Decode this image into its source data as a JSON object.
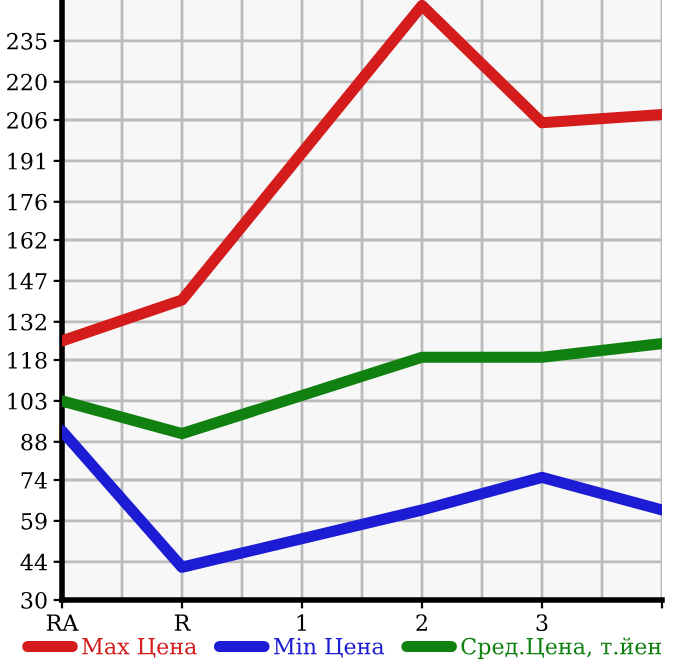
{
  "chart_data": {
    "type": "line",
    "categories": [
      "RA",
      "R",
      "1",
      "2",
      "3",
      null
    ],
    "ylim": [
      30,
      250
    ],
    "yticks": [
      30,
      44,
      59,
      74,
      88,
      103,
      118,
      132,
      147,
      162,
      176,
      191,
      206,
      220,
      235
    ],
    "grid": true,
    "legend": "bottom",
    "marker": "none",
    "line_style": "solid",
    "series": [
      {
        "name": "Max Цена",
        "color": "#d41c1c",
        "values": [
          125,
          140,
          null,
          248,
          205,
          208
        ]
      },
      {
        "name": "Min Цена",
        "color": "#1c1cd4",
        "values": [
          92,
          42,
          null,
          63,
          75,
          63
        ]
      },
      {
        "name": "Сред.Цена, т.йен",
        "color": "#108010",
        "values": [
          103,
          91,
          null,
          119,
          119,
          124
        ]
      }
    ]
  }
}
